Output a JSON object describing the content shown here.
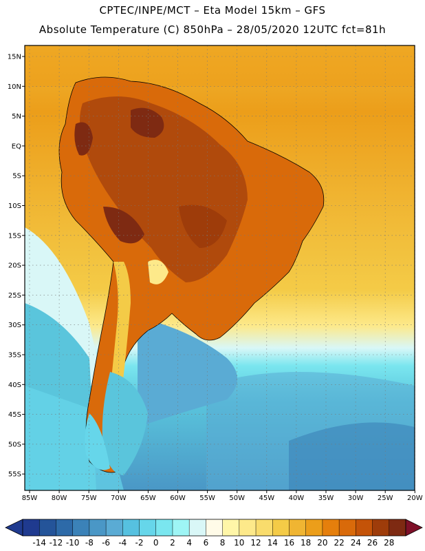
{
  "header": {
    "line1": "CPTEC/INPE/MCT –  Eta Model 15km – GFS",
    "line2": "Absolute Temperature (C) 850hPa – 28/05/2020 12UTC fct=81h"
  },
  "axes": {
    "longitudes": [
      "85W",
      "80W",
      "75W",
      "70W",
      "65W",
      "60W",
      "55W",
      "50W",
      "45W",
      "40W",
      "35W",
      "30W",
      "25W",
      "20W"
    ],
    "latitudes": [
      "15N",
      "10N",
      "5N",
      "EQ",
      "5S",
      "10S",
      "15S",
      "20S",
      "25S",
      "30S",
      "35S",
      "40S",
      "45S",
      "50S",
      "55S"
    ]
  },
  "colorbar": {
    "labels": [
      "-14",
      "-12",
      "-10",
      "-8",
      "-6",
      "-4",
      "-2",
      "0",
      "2",
      "4",
      "6",
      "8",
      "10",
      "12",
      "14",
      "16",
      "18",
      "20",
      "22",
      "24",
      "26",
      "28"
    ],
    "colors": [
      "#1f3a8f",
      "#245499",
      "#2d6aa8",
      "#3b82b8",
      "#4a97c6",
      "#5aabd4",
      "#56c1e0",
      "#66d6ea",
      "#7ae6ef",
      "#9ef5f5",
      "#d9f7f7",
      "#fffbe8",
      "#fff6a8",
      "#fde98a",
      "#f9dc6c",
      "#f4cb47",
      "#f0b532",
      "#ec9e1a",
      "#e57f0c",
      "#d96a0a",
      "#c45308",
      "#9e3c0a",
      "#7e2a12"
    ],
    "low_color": "#1f3a8f",
    "high_color": "#7e1028"
  },
  "palette": {
    "sea_warm": "#f0b532",
    "sea_cool": "#5ac5dc",
    "land_hot": "#b04a0c",
    "land_very_hot": "#7e2a12",
    "land_warm": "#d96a0a",
    "andes_cool": "#f9dc6c",
    "south_cold": "#5aabd4",
    "south_deep": "#3b82b8"
  }
}
